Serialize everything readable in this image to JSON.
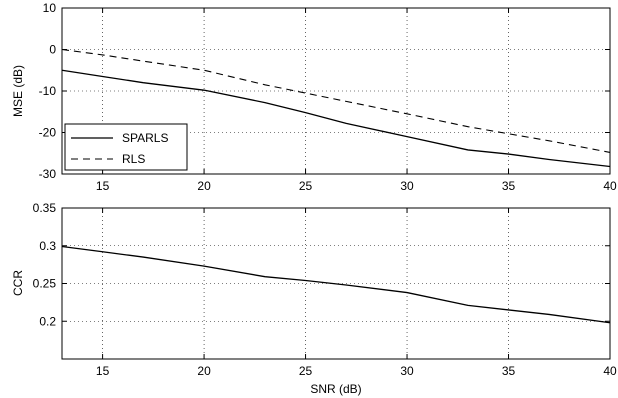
{
  "chart_data": [
    {
      "type": "line",
      "title": "",
      "xlabel": "",
      "ylabel": "MSE (dB)",
      "xlim": [
        13,
        40
      ],
      "ylim": [
        -30,
        10
      ],
      "xticks": [
        15,
        20,
        25,
        30,
        35,
        40
      ],
      "yticks": [
        -30,
        -20,
        -10,
        0,
        10
      ],
      "grid": true,
      "legend": "bottom-left",
      "series": [
        {
          "name": "SPARLS",
          "style": "solid",
          "x": [
            13,
            15,
            17,
            20,
            23,
            25,
            27,
            30,
            33,
            35,
            37,
            40
          ],
          "y": [
            -5,
            -6.5,
            -8,
            -9.8,
            -12.8,
            -15.2,
            -17.8,
            -21,
            -24.2,
            -25.2,
            -26.5,
            -28.2
          ]
        },
        {
          "name": "RLS",
          "style": "dashed",
          "x": [
            13,
            15,
            17,
            20,
            23,
            25,
            27,
            30,
            33,
            35,
            37,
            40
          ],
          "y": [
            0,
            -1.3,
            -2.8,
            -5,
            -8.5,
            -10.5,
            -12.5,
            -15.5,
            -18.6,
            -20.3,
            -22,
            -24.8
          ]
        }
      ]
    },
    {
      "type": "line",
      "title": "",
      "xlabel": "SNR (dB)",
      "ylabel": "CCR",
      "xlim": [
        13,
        40
      ],
      "ylim": [
        0.15,
        0.35
      ],
      "xticks": [
        15,
        20,
        25,
        30,
        35,
        40
      ],
      "yticks": [
        0.2,
        0.25,
        0.3,
        0.35
      ],
      "grid": true,
      "series": [
        {
          "style": "solid",
          "x": [
            13,
            15,
            17,
            20,
            23,
            25,
            27,
            30,
            33,
            35,
            37,
            40
          ],
          "y": [
            0.299,
            0.292,
            0.285,
            0.273,
            0.259,
            0.254,
            0.248,
            0.238,
            0.221,
            0.215,
            0.209,
            0.198
          ]
        }
      ]
    }
  ]
}
